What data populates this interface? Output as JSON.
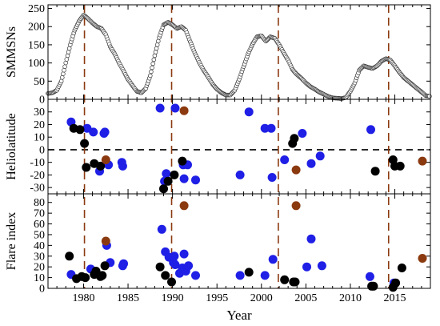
{
  "chart_data": [
    {
      "type": "line",
      "ylabel": "SMMSNs",
      "xlim": [
        1976,
        2019
      ],
      "ylim": [
        0,
        260
      ],
      "yticks": [
        0,
        50,
        100,
        150,
        200,
        250
      ],
      "grid": false,
      "marker": "open circles (dense)",
      "series": [
        {
          "x": [
            1976.0,
            1976.5,
            1977.0,
            1977.5,
            1978.0,
            1978.5,
            1979.0,
            1979.5,
            1980.0,
            1980.5,
            1981.0,
            1981.5,
            1982.0,
            1982.5,
            1983.0,
            1983.5,
            1984.0,
            1984.5,
            1985.0,
            1985.5,
            1986.0,
            1986.5,
            1987.0,
            1987.5,
            1988.0,
            1988.5,
            1989.0,
            1989.5,
            1990.0,
            1990.5,
            1991.0,
            1991.5,
            1992.0,
            1992.5,
            1993.0,
            1993.5,
            1994.0,
            1994.5,
            1995.0,
            1995.5,
            1996.0,
            1996.5,
            1997.0,
            1997.5,
            1998.0,
            1998.5,
            1999.0,
            1999.5,
            2000.0,
            2000.5,
            2001.0,
            2001.5,
            2002.0,
            2002.5,
            2003.0,
            2003.5,
            2004.0,
            2004.5,
            2005.0,
            2005.5,
            2006.0,
            2006.5,
            2007.0,
            2007.5,
            2008.0,
            2008.5,
            2009.0,
            2009.5,
            2010.0,
            2010.5,
            2011.0,
            2011.5,
            2012.0,
            2012.5,
            2013.0,
            2013.5,
            2014.0,
            2014.5,
            2015.0,
            2015.5,
            2016.0,
            2016.5,
            2017.0,
            2017.5,
            2018.0,
            2018.5,
            2019.0
          ],
          "values": [
            16,
            18,
            25,
            50,
            100,
            150,
            190,
            215,
            232,
            222,
            210,
            200,
            195,
            178,
            145,
            125,
            100,
            78,
            55,
            38,
            22,
            18,
            30,
            65,
            120,
            170,
            205,
            212,
            205,
            195,
            200,
            190,
            158,
            128,
            102,
            80,
            62,
            42,
            28,
            18,
            12,
            12,
            25,
            55,
            90,
            125,
            152,
            172,
            175,
            160,
            172,
            168,
            150,
            128,
            108,
            82,
            68,
            58,
            45,
            35,
            28,
            20,
            14,
            8,
            4,
            3,
            2,
            5,
            22,
            45,
            80,
            92,
            88,
            85,
            92,
            105,
            112,
            108,
            92,
            75,
            60,
            50,
            40,
            30,
            20,
            10,
            8
          ]
        }
      ]
    },
    {
      "type": "scatter",
      "ylabel": "Heliolatitude",
      "xlim": [
        1976,
        2019
      ],
      "ylim": [
        -35,
        40
      ],
      "yticks": [
        -30,
        -20,
        -10,
        0,
        10,
        20,
        30
      ],
      "reference_line": 0,
      "series": [
        {
          "color": "#1f1fe6",
          "points": [
            [
              1978.6,
              22
            ],
            [
              1980.4,
              17
            ],
            [
              1981.1,
              14
            ],
            [
              1981.8,
              -17
            ],
            [
              1982.3,
              13
            ],
            [
              1982.4,
              14
            ],
            [
              1982.6,
              -11
            ],
            [
              1982.8,
              -12
            ],
            [
              1984.3,
              -10
            ],
            [
              1984.4,
              -13
            ],
            [
              1988.6,
              33
            ],
            [
              1989.1,
              -25
            ],
            [
              1989.3,
              -19
            ],
            [
              1990.3,
              33
            ],
            [
              1991.2,
              -12
            ],
            [
              1991.3,
              -23
            ],
            [
              1991.7,
              -12
            ],
            [
              1992.6,
              -24
            ],
            [
              1997.6,
              -20
            ],
            [
              1998.6,
              30
            ],
            [
              2000.4,
              17
            ],
            [
              2001.1,
              17
            ],
            [
              2001.2,
              -22
            ],
            [
              2002.6,
              -8
            ],
            [
              2004.6,
              13
            ],
            [
              2005.6,
              -11
            ],
            [
              2006.6,
              -5
            ],
            [
              2012.3,
              16
            ]
          ]
        },
        {
          "color": "#000000",
          "points": [
            [
              1978.9,
              17
            ],
            [
              1979.6,
              16
            ],
            [
              1980.1,
              5
            ],
            [
              1980.3,
              -14
            ],
            [
              1981.2,
              -11
            ],
            [
              1981.9,
              -13
            ],
            [
              1989.0,
              -31
            ],
            [
              1989.5,
              -25
            ],
            [
              1990.2,
              -20
            ],
            [
              1991.1,
              -9
            ],
            [
              2003.5,
              5
            ],
            [
              2003.7,
              9
            ],
            [
              2012.8,
              -17
            ],
            [
              2014.8,
              -8
            ],
            [
              2015.0,
              -13
            ],
            [
              2015.6,
              -13
            ]
          ]
        },
        {
          "color": "#8b3a10",
          "points": [
            [
              1982.5,
              -8
            ],
            [
              1991.3,
              31
            ],
            [
              2003.9,
              -16
            ],
            [
              2018.1,
              -9
            ]
          ]
        }
      ]
    },
    {
      "type": "scatter",
      "xlabel": "Year",
      "ylabel": "Flare index",
      "xlim": [
        1976,
        2019
      ],
      "ylim": [
        0,
        88
      ],
      "yticks": [
        0,
        10,
        20,
        30,
        40,
        50,
        60,
        70,
        80
      ],
      "xticks": [
        1980,
        1985,
        1990,
        1995,
        2000,
        2005,
        2010,
        2015
      ],
      "series": [
        {
          "color": "#1f1fe6",
          "points": [
            [
              1978.6,
              13
            ],
            [
              1980.8,
              18
            ],
            [
              1981.3,
              16
            ],
            [
              1982.6,
              40
            ],
            [
              1983.0,
              24
            ],
            [
              1984.4,
              21
            ],
            [
              1984.5,
              23
            ],
            [
              1988.8,
              55
            ],
            [
              1989.2,
              34
            ],
            [
              1989.6,
              29
            ],
            [
              1990.1,
              24
            ],
            [
              1990.2,
              30
            ],
            [
              1990.3,
              22
            ],
            [
              1990.8,
              14
            ],
            [
              1991.1,
              19
            ],
            [
              1991.3,
              32
            ],
            [
              1991.5,
              16
            ],
            [
              1991.8,
              21
            ],
            [
              1992.6,
              12
            ],
            [
              1997.6,
              12
            ],
            [
              2000.4,
              12
            ],
            [
              2001.3,
              27
            ],
            [
              2005.1,
              20
            ],
            [
              2005.6,
              46
            ],
            [
              2006.8,
              21
            ],
            [
              2012.2,
              11
            ],
            [
              2014.9,
              5
            ]
          ]
        },
        {
          "color": "#000000",
          "points": [
            [
              1978.4,
              30
            ],
            [
              1979.2,
              9
            ],
            [
              1979.8,
              11
            ],
            [
              1980.2,
              10
            ],
            [
              1981.2,
              13
            ],
            [
              1981.4,
              16
            ],
            [
              1981.9,
              11
            ],
            [
              1982.1,
              12
            ],
            [
              1982.4,
              21
            ],
            [
              1988.6,
              20
            ],
            [
              1989.2,
              12
            ],
            [
              1989.9,
              6
            ],
            [
              1998.6,
              15
            ],
            [
              2002.6,
              8
            ],
            [
              2003.6,
              6
            ],
            [
              2003.8,
              6
            ],
            [
              2012.4,
              2
            ],
            [
              2012.6,
              2
            ],
            [
              2014.8,
              1
            ],
            [
              2015.1,
              5
            ],
            [
              2015.8,
              19
            ]
          ]
        },
        {
          "color": "#8b3a10",
          "points": [
            [
              1982.5,
              44
            ],
            [
              1991.3,
              77
            ],
            [
              2003.9,
              77
            ],
            [
              2018.1,
              28
            ]
          ]
        }
      ]
    }
  ],
  "vertical_markers": {
    "color": "#8b3a10",
    "x": [
      1980.1,
      1989.9,
      2001.9,
      2014.3
    ]
  }
}
